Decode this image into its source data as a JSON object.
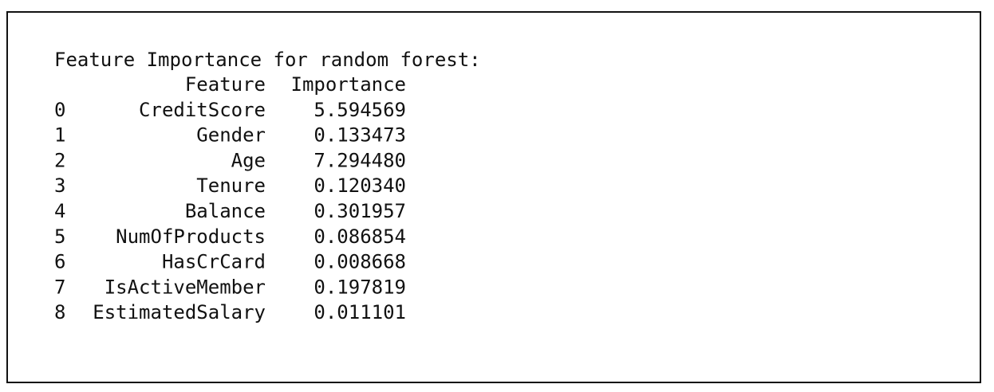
{
  "title": "Feature Importance for random forest:",
  "table": {
    "columns": [
      "Feature",
      "Importance"
    ],
    "rows": [
      [
        "0",
        "CreditScore",
        "5.594569"
      ],
      [
        "1",
        "Gender",
        "0.133473"
      ],
      [
        "2",
        "Age",
        "7.294480"
      ],
      [
        "3",
        "Tenure",
        "0.120340"
      ],
      [
        "4",
        "Balance",
        "0.301957"
      ],
      [
        "5",
        "NumOfProducts",
        "0.086854"
      ],
      [
        "6",
        "HasCrCard",
        "0.008668"
      ],
      [
        "7",
        "IsActiveMember",
        "0.197819"
      ],
      [
        "8",
        "EstimatedSalary",
        "0.011101"
      ]
    ]
  }
}
